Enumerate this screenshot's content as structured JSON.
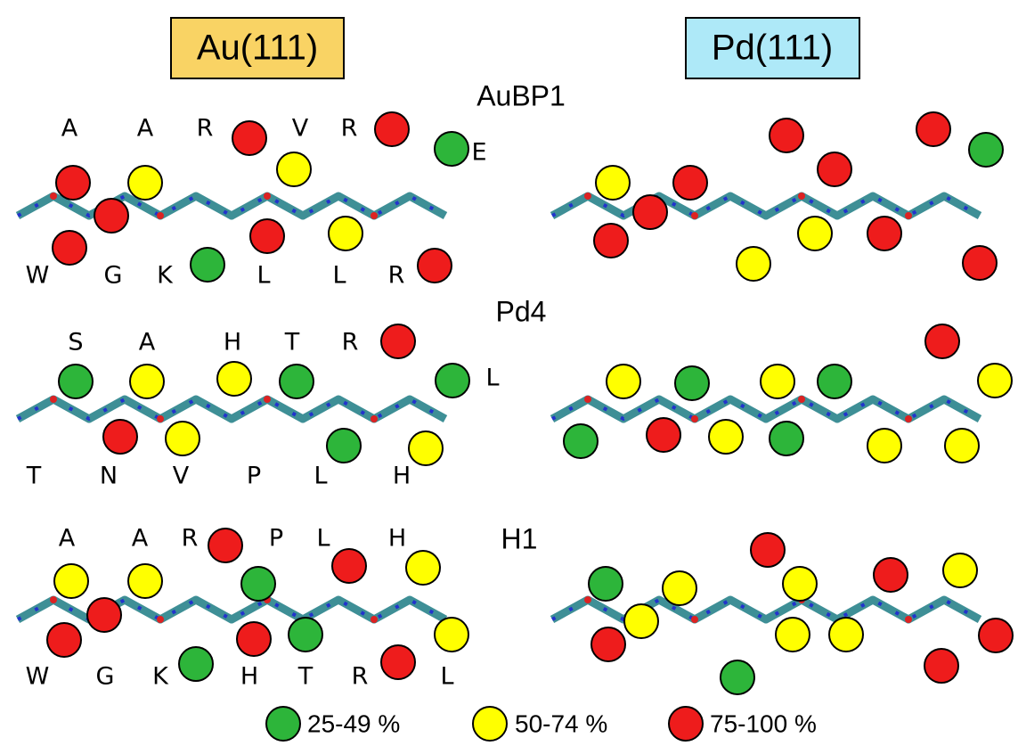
{
  "headers": [
    "Au(111)",
    "Pd(111)"
  ],
  "peptides": [
    {
      "name": "AuBP1",
      "top": [
        "A",
        "A",
        "R",
        "V",
        "R",
        "E"
      ],
      "bottom": [
        "W",
        "G",
        "K",
        "L",
        "L",
        "R"
      ]
    },
    {
      "name": "Pd4",
      "top": [
        "S",
        "A",
        "H",
        "T",
        "R",
        "L"
      ],
      "bottom": [
        "T",
        "N",
        "V",
        "P",
        "L",
        "H"
      ]
    },
    {
      "name": "H1",
      "top": [
        "A",
        "A",
        "R",
        "P",
        "L",
        "H"
      ],
      "bottom": [
        "W",
        "G",
        "K",
        "H",
        "T",
        "R",
        "L"
      ]
    }
  ],
  "legend": [
    "25-49 %",
    "50-74 %",
    "75-100 %"
  ]
}
